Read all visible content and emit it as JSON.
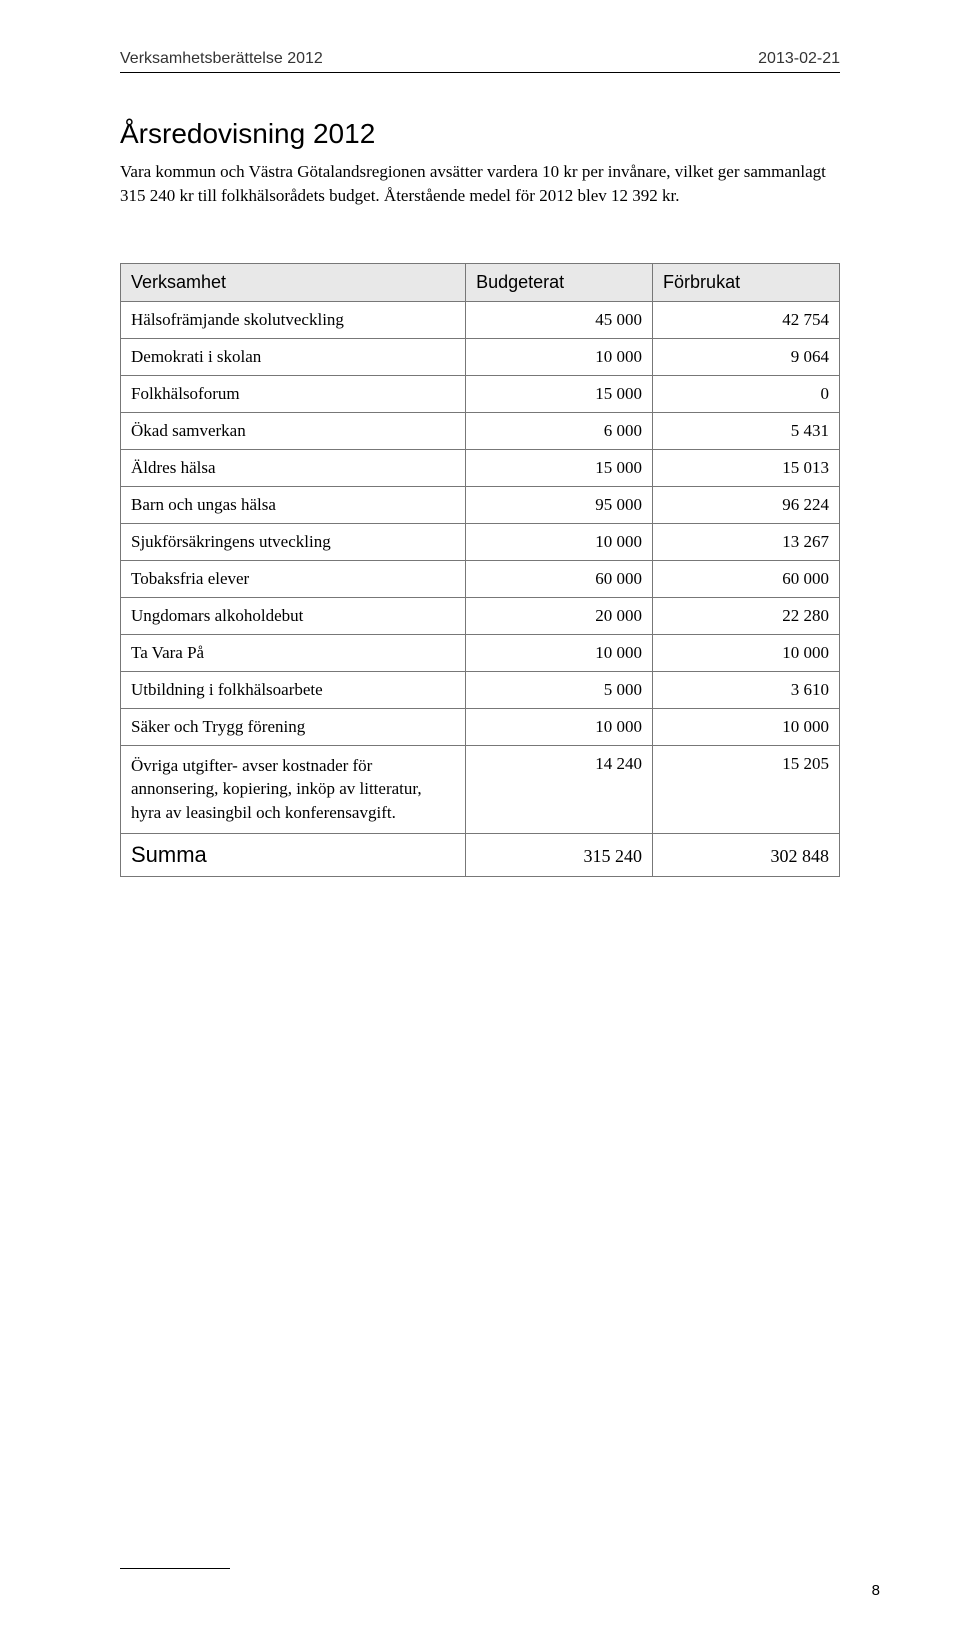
{
  "header": {
    "left": "Verksamhetsberättelse 2012",
    "right": "2013-02-21"
  },
  "title": "Årsredovisning 2012",
  "intro": "Vara kommun och Västra Götalandsregionen avsätter vardera 10 kr per invånare, vilket ger sammanlagt 315 240 kr till folkhälsorådets budget. Återstående medel för 2012 blev 12 392 kr.",
  "table": {
    "columns": [
      "Verksamhet",
      "Budgeterat",
      "Förbrukat"
    ],
    "header_bg": "#e8e8e8",
    "border_color": "#777777",
    "rows": [
      {
        "label": "Hälsofrämjande skolutveckling",
        "budget": "45 000",
        "spent": "42 754"
      },
      {
        "label": "Demokrati i skolan",
        "budget": "10 000",
        "spent": "9 064"
      },
      {
        "label": "Folkhälsoforum",
        "budget": "15 000",
        "spent": "0"
      },
      {
        "label": "Ökad samverkan",
        "budget": "6 000",
        "spent": "5 431"
      },
      {
        "label": "Äldres hälsa",
        "budget": "15 000",
        "spent": "15 013"
      },
      {
        "label": "Barn och ungas hälsa",
        "budget": "95 000",
        "spent": "96 224"
      },
      {
        "label": "Sjukförsäkringens utveckling",
        "budget": "10 000",
        "spent": "13 267"
      },
      {
        "label": "Tobaksfria elever",
        "budget": "60 000",
        "spent": "60 000"
      },
      {
        "label": "Ungdomars alkoholdebut",
        "budget": "20 000",
        "spent": "22 280"
      },
      {
        "label": "Ta Vara På",
        "budget": "10 000",
        "spent": "10 000"
      },
      {
        "label": "Utbildning i folkhälsoarbete",
        "budget": "5 000",
        "spent": "3 610"
      },
      {
        "label": "Säker och Trygg förening",
        "budget": "10 000",
        "spent": "10 000"
      },
      {
        "label": "Övriga utgifter- avser kostnader för annonsering, kopiering, inköp av litteratur, hyra av leasingbil och konferensavgift.",
        "budget": "14 240",
        "spent": "15 205",
        "multiline": true
      }
    ],
    "sum": {
      "label": "Summa",
      "budget": "315 240",
      "spent": "302 848"
    }
  },
  "page_number": "8",
  "style": {
    "page_bg": "#ffffff",
    "text_color": "#000000",
    "header_font": "Verdana",
    "body_font": "Georgia",
    "title_fontsize": 28,
    "body_fontsize": 17,
    "table_header_fontsize": 18,
    "sum_label_fontsize": 22
  }
}
